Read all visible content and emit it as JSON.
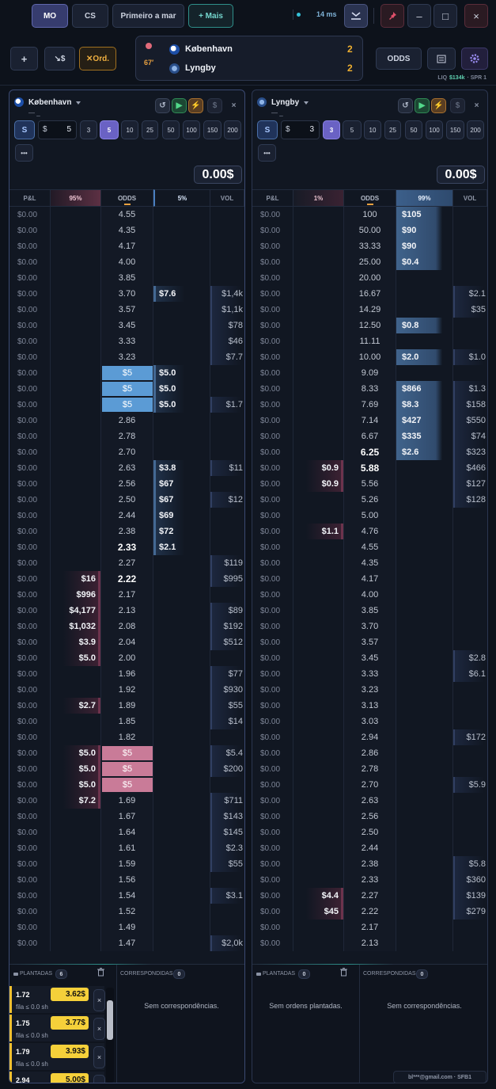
{
  "top_bar": {
    "tabs": [
      "MO",
      "CS",
      "Primeiro a mar",
      "+ Mais"
    ],
    "latency": "14 ms",
    "window_buttons": [
      "–",
      "□",
      "×"
    ]
  },
  "toolbar": {
    "buttons": [
      "+",
      "↘$",
      "✕Ord."
    ],
    "odds_button": "ODDS",
    "liq_label": "LIQ",
    "liq_value": "$134k",
    "spread": "· SPR 1"
  },
  "match": {
    "minute": "67′",
    "teams": [
      {
        "name": "København",
        "score": "2"
      },
      {
        "name": "Lyngby",
        "score": "2"
      }
    ]
  },
  "panels": [
    {
      "team": "København",
      "subtitle": "— _",
      "tools": [
        "↺",
        "▶",
        "⚡",
        "$",
        "×"
      ],
      "stake_button": "S",
      "currency": "$",
      "stake": "5",
      "presets": [
        "3",
        "5",
        "10",
        "25",
        "50",
        "100",
        "150",
        "200"
      ],
      "selected_preset": 1,
      "more": "•••",
      "total": "0.00$",
      "headers": [
        "P&L",
        "95%",
        "ODDS",
        "5%",
        "VOL"
      ],
      "rows": [
        [
          "$0.00",
          null,
          "4.55",
          null,
          null
        ],
        [
          "$0.00",
          null,
          "4.35",
          null,
          null
        ],
        [
          "$0.00",
          null,
          "4.17",
          null,
          null
        ],
        [
          "$0.00",
          null,
          "4.00",
          null,
          null
        ],
        [
          "$0.00",
          null,
          "3.85",
          null,
          null
        ],
        [
          "$0.00",
          null,
          "3.70",
          "$7.6",
          "$1,4k"
        ],
        [
          "$0.00",
          null,
          "3.57",
          null,
          "$1,1k"
        ],
        [
          "$0.00",
          null,
          "3.45",
          null,
          "$78"
        ],
        [
          "$0.00",
          null,
          "3.33",
          null,
          "$46"
        ],
        [
          "$0.00",
          null,
          "3.23",
          null,
          "$7.7"
        ],
        [
          "$0.00",
          null,
          "$5",
          "$5.0",
          null,
          "own-lay"
        ],
        [
          "$0.00",
          null,
          "$5",
          "$5.0",
          null,
          "own-lay"
        ],
        [
          "$0.00",
          null,
          "$5",
          "$5.0",
          "$1.7",
          "own-lay"
        ],
        [
          "$0.00",
          null,
          "2.86",
          null,
          null
        ],
        [
          "$0.00",
          null,
          "2.78",
          null,
          null
        ],
        [
          "$0.00",
          null,
          "2.70",
          null,
          null
        ],
        [
          "$0.00",
          null,
          "2.63",
          "$3.8",
          "$11"
        ],
        [
          "$0.00",
          null,
          "2.56",
          "$67",
          null
        ],
        [
          "$0.00",
          null,
          "2.50",
          "$67",
          "$12"
        ],
        [
          "$0.00",
          null,
          "2.44",
          "$69",
          null
        ],
        [
          "$0.00",
          null,
          "2.38",
          "$72",
          null
        ],
        [
          "$0.00",
          null,
          "2.33",
          "$2.1",
          null,
          "bold"
        ],
        [
          "$0.00",
          null,
          "2.27",
          null,
          "$119"
        ],
        [
          "$0.00",
          "$16",
          "2.22",
          null,
          "$995",
          "bold"
        ],
        [
          "$0.00",
          "$996",
          "2.17",
          null,
          null
        ],
        [
          "$0.00",
          "$4,177",
          "2.13",
          null,
          "$89"
        ],
        [
          "$0.00",
          "$1,032",
          "2.08",
          null,
          "$192"
        ],
        [
          "$0.00",
          "$3.9",
          "2.04",
          null,
          "$512"
        ],
        [
          "$0.00",
          "$5.0",
          "2.00",
          null,
          null
        ],
        [
          "$0.00",
          null,
          "1.96",
          null,
          "$77"
        ],
        [
          "$0.00",
          null,
          "1.92",
          null,
          "$930"
        ],
        [
          "$0.00",
          "$2.7",
          "1.89",
          null,
          "$55"
        ],
        [
          "$0.00",
          null,
          "1.85",
          null,
          "$14"
        ],
        [
          "$0.00",
          null,
          "1.82",
          null,
          null
        ],
        [
          "$0.00",
          "$5.0",
          "$5",
          null,
          "$5.4",
          "own-back"
        ],
        [
          "$0.00",
          "$5.0",
          "$5",
          null,
          "$200",
          "own-back"
        ],
        [
          "$0.00",
          "$5.0",
          "$5",
          null,
          null,
          "own-back"
        ],
        [
          "$0.00",
          "$7.2",
          "1.69",
          null,
          "$711"
        ],
        [
          "$0.00",
          null,
          "1.67",
          null,
          "$143"
        ],
        [
          "$0.00",
          null,
          "1.64",
          null,
          "$145"
        ],
        [
          "$0.00",
          null,
          "1.61",
          null,
          "$2.3"
        ],
        [
          "$0.00",
          null,
          "1.59",
          null,
          "$55"
        ],
        [
          "$0.00",
          null,
          "1.56",
          null,
          null
        ],
        [
          "$0.00",
          null,
          "1.54",
          null,
          "$3.1"
        ],
        [
          "$0.00",
          null,
          "1.52",
          null,
          null
        ],
        [
          "$0.00",
          null,
          "1.49",
          null,
          null
        ],
        [
          "$0.00",
          null,
          "1.47",
          null,
          "$2,0k"
        ]
      ],
      "planted": {
        "label": "PLANTADAS",
        "count": "6",
        "close": "×",
        "orders": [
          {
            "odds": "1.72",
            "stake": "3.62$",
            "queue": "fila ≤ 0.0 sh"
          },
          {
            "odds": "1.75",
            "stake": "3.77$",
            "queue": "fila ≤ 0.0 sh"
          },
          {
            "odds": "1.79",
            "stake": "3.93$",
            "queue": "fila ≤ 0.0 sh"
          },
          {
            "odds": "2.94",
            "stake": "5.00$"
          }
        ]
      },
      "matched": {
        "label": "CORRESPONDIDAS",
        "count": "0",
        "empty": "Sem correspondências."
      }
    },
    {
      "team": "Lyngby",
      "subtitle": "— _",
      "tools": [
        "↺",
        "▶",
        "⚡",
        "$",
        "×"
      ],
      "stake_button": "S",
      "currency": "$",
      "stake": "3",
      "presets": [
        "3",
        "5",
        "10",
        "25",
        "50",
        "100",
        "150",
        "200"
      ],
      "selected_preset": 0,
      "more": "•••",
      "total": "0.00$",
      "headers": [
        "P&L",
        "1%",
        "ODDS",
        "99%",
        "VOL"
      ],
      "rows": [
        [
          "$0.00",
          null,
          "100",
          "$105",
          null
        ],
        [
          "$0.00",
          null,
          "50.00",
          "$90",
          null
        ],
        [
          "$0.00",
          null,
          "33.33",
          "$90",
          null
        ],
        [
          "$0.00",
          null,
          "25.00",
          "$0.4",
          null
        ],
        [
          "$0.00",
          null,
          "20.00",
          null,
          null
        ],
        [
          "$0.00",
          null,
          "16.67",
          null,
          "$2.1"
        ],
        [
          "$0.00",
          null,
          "14.29",
          null,
          "$35"
        ],
        [
          "$0.00",
          null,
          "12.50",
          "$0.8",
          null
        ],
        [
          "$0.00",
          null,
          "11.11",
          null,
          null
        ],
        [
          "$0.00",
          null,
          "10.00",
          "$2.0",
          "$1.0"
        ],
        [
          "$0.00",
          null,
          "9.09",
          null,
          null
        ],
        [
          "$0.00",
          null,
          "8.33",
          "$866",
          "$1.3"
        ],
        [
          "$0.00",
          null,
          "7.69",
          "$8.3",
          "$158"
        ],
        [
          "$0.00",
          null,
          "7.14",
          "$427",
          "$550"
        ],
        [
          "$0.00",
          null,
          "6.67",
          "$335",
          "$74"
        ],
        [
          "$0.00",
          null,
          "6.25",
          "$2.6",
          "$323",
          "bold"
        ],
        [
          "$0.00",
          "$0.9",
          "5.88",
          null,
          "$466",
          "bold"
        ],
        [
          "$0.00",
          "$0.9",
          "5.56",
          null,
          "$127"
        ],
        [
          "$0.00",
          null,
          "5.26",
          null,
          "$128"
        ],
        [
          "$0.00",
          null,
          "5.00",
          null,
          null
        ],
        [
          "$0.00",
          "$1.1",
          "4.76",
          null,
          null
        ],
        [
          "$0.00",
          null,
          "4.55",
          null,
          null
        ],
        [
          "$0.00",
          null,
          "4.35",
          null,
          null
        ],
        [
          "$0.00",
          null,
          "4.17",
          null,
          null
        ],
        [
          "$0.00",
          null,
          "4.00",
          null,
          null
        ],
        [
          "$0.00",
          null,
          "3.85",
          null,
          null
        ],
        [
          "$0.00",
          null,
          "3.70",
          null,
          null
        ],
        [
          "$0.00",
          null,
          "3.57",
          null,
          null
        ],
        [
          "$0.00",
          null,
          "3.45",
          null,
          "$2.8"
        ],
        [
          "$0.00",
          null,
          "3.33",
          null,
          "$6.1"
        ],
        [
          "$0.00",
          null,
          "3.23",
          null,
          null
        ],
        [
          "$0.00",
          null,
          "3.13",
          null,
          null
        ],
        [
          "$0.00",
          null,
          "3.03",
          null,
          null
        ],
        [
          "$0.00",
          null,
          "2.94",
          null,
          "$172"
        ],
        [
          "$0.00",
          null,
          "2.86",
          null,
          null
        ],
        [
          "$0.00",
          null,
          "2.78",
          null,
          null
        ],
        [
          "$0.00",
          null,
          "2.70",
          null,
          "$5.9"
        ],
        [
          "$0.00",
          null,
          "2.63",
          null,
          null
        ],
        [
          "$0.00",
          null,
          "2.56",
          null,
          null
        ],
        [
          "$0.00",
          null,
          "2.50",
          null,
          null
        ],
        [
          "$0.00",
          null,
          "2.44",
          null,
          null
        ],
        [
          "$0.00",
          null,
          "2.38",
          null,
          "$5.8"
        ],
        [
          "$0.00",
          null,
          "2.33",
          null,
          "$360"
        ],
        [
          "$0.00",
          "$4.4",
          "2.27",
          null,
          "$139"
        ],
        [
          "$0.00",
          "$45",
          "2.22",
          null,
          "$279"
        ],
        [
          "$0.00",
          null,
          "2.17",
          null,
          null
        ],
        [
          "$0.00",
          null,
          "2.13",
          null,
          null
        ]
      ],
      "planted": {
        "label": "PLANTADAS",
        "count": "0",
        "empty": "Sem ordens plantadas."
      },
      "matched": {
        "label": "CORRESPONDIDAS",
        "count": "0",
        "empty": "Sem correspondências."
      }
    }
  ],
  "footer": "bl***@gmail.com · SFB1"
}
